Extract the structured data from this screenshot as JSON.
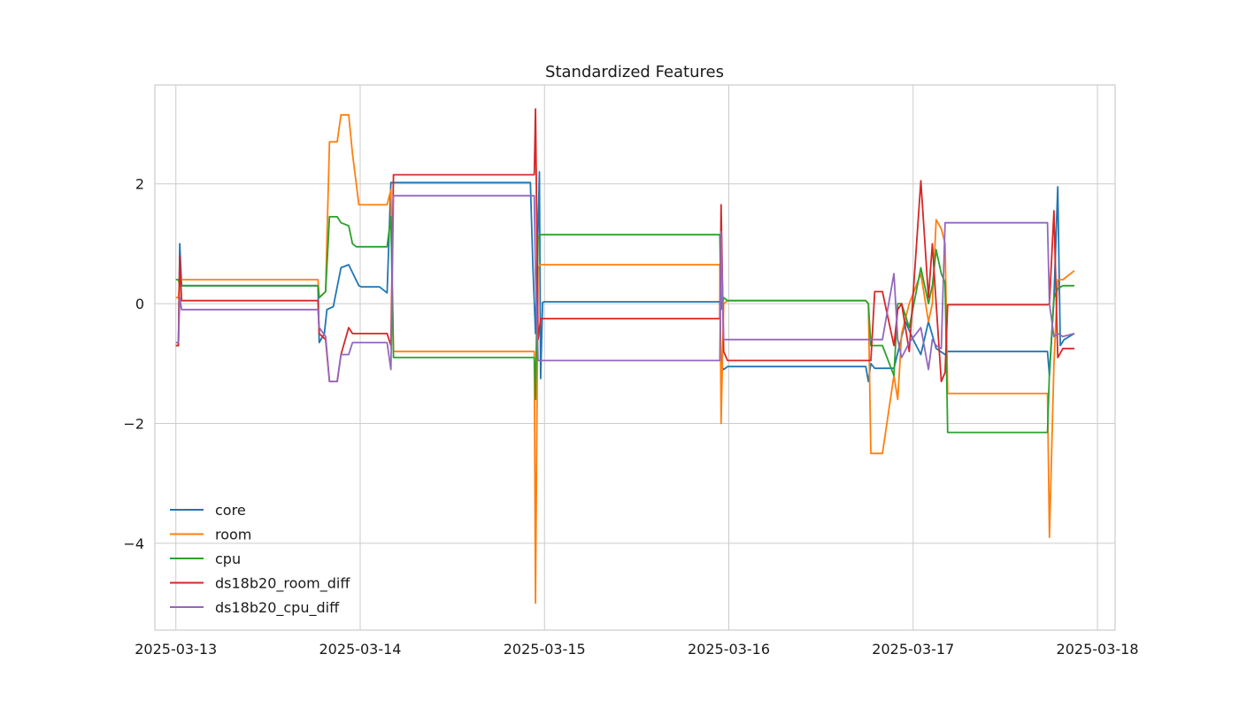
{
  "chart_data": {
    "type": "line",
    "title": "Standardized Features",
    "xlabel": "",
    "ylabel": "",
    "x_type": "date",
    "xlim": [
      "2025-03-12T21:16",
      "2025-03-18T02:18"
    ],
    "ylim": [
      -5.45,
      3.65
    ],
    "x_ticks": [
      "2025-03-13",
      "2025-03-14",
      "2025-03-15",
      "2025-03-16",
      "2025-03-17",
      "2025-03-18"
    ],
    "y_ticks": [
      2,
      0,
      -2,
      -4
    ],
    "y_tick_labels": [
      "2",
      "0",
      "−2",
      "−4"
    ],
    "grid": true,
    "legend_position": "lower-left",
    "series": [
      {
        "name": "core",
        "color": "#1f77b4",
        "x": [
          "2025-03-13T00:00",
          "2025-03-13T00:20",
          "2025-03-13T00:30",
          "2025-03-13T00:45",
          "2025-03-13T01:15",
          "2025-03-13T18:30",
          "2025-03-13T18:40",
          "2025-03-13T19:20",
          "2025-03-13T19:40",
          "2025-03-13T20:30",
          "2025-03-13T21:30",
          "2025-03-13T22:30",
          "2025-03-13T23:50",
          "2025-03-14T00:10",
          "2025-03-14T00:45",
          "2025-03-14T02:30",
          "2025-03-14T03:30",
          "2025-03-14T04:00",
          "2025-03-14T04:20",
          "2025-03-14T22:10",
          "2025-03-14T22:30",
          "2025-03-14T22:50",
          "2025-03-14T23:20",
          "2025-03-14T23:30",
          "2025-03-14T23:45",
          "2025-03-15T00:00",
          "2025-03-15T22:50",
          "2025-03-15T23:00",
          "2025-03-15T23:20",
          "2025-03-15T23:50",
          "2025-03-16T00:40",
          "2025-03-16T01:30",
          "2025-03-16T17:50",
          "2025-03-16T18:10",
          "2025-03-16T18:30",
          "2025-03-16T19:00",
          "2025-03-16T21:30",
          "2025-03-16T23:00",
          "2025-03-17T00:00",
          "2025-03-17T01:00",
          "2025-03-17T02:00",
          "2025-03-17T03:00",
          "2025-03-17T04:10",
          "2025-03-17T04:30",
          "2025-03-17T17:30",
          "2025-03-17T17:45",
          "2025-03-17T18:20",
          "2025-03-17T18:50",
          "2025-03-17T19:10",
          "2025-03-17T19:40",
          "2025-03-17T21:00"
        ],
        "y": [
          -0.7,
          -0.7,
          1.0,
          0.3,
          0.3,
          0.3,
          -0.65,
          -0.5,
          -0.1,
          -0.05,
          0.6,
          0.65,
          0.3,
          0.28,
          0.28,
          0.28,
          0.18,
          2.02,
          2.02,
          2.02,
          0.6,
          -0.5,
          2.2,
          -1.25,
          0.02,
          0.03,
          0.03,
          -1.05,
          -1.1,
          -1.05,
          -1.05,
          -1.05,
          -1.05,
          -1.3,
          -1.0,
          -1.08,
          -1.08,
          -0.3,
          -0.6,
          -0.85,
          -0.3,
          -0.75,
          -0.85,
          -0.8,
          -0.8,
          -1.2,
          0.1,
          1.95,
          -0.7,
          -0.6,
          -0.5
        ]
      },
      {
        "name": "room",
        "color": "#ff7f0e",
        "x": [
          "2025-03-13T00:00",
          "2025-03-13T00:20",
          "2025-03-13T00:30",
          "2025-03-13T00:45",
          "2025-03-13T18:30",
          "2025-03-13T18:40",
          "2025-03-13T19:30",
          "2025-03-13T20:00",
          "2025-03-13T21:00",
          "2025-03-13T21:30",
          "2025-03-13T22:30",
          "2025-03-13T23:00",
          "2025-03-13T23:30",
          "2025-03-13T23:50",
          "2025-03-14T01:30",
          "2025-03-14T03:30",
          "2025-03-14T04:00",
          "2025-03-14T04:20",
          "2025-03-14T22:20",
          "2025-03-14T22:40",
          "2025-03-14T22:50",
          "2025-03-14T23:10",
          "2025-03-14T23:30",
          "2025-03-15T00:00",
          "2025-03-15T22:50",
          "2025-03-15T23:00",
          "2025-03-15T23:20",
          "2025-03-15T23:50",
          "2025-03-16T01:00",
          "2025-03-16T17:50",
          "2025-03-16T18:10",
          "2025-03-16T18:30",
          "2025-03-16T19:00",
          "2025-03-16T20:00",
          "2025-03-16T21:30",
          "2025-03-16T22:00",
          "2025-03-16T22:30",
          "2025-03-16T23:30",
          "2025-03-17T01:00",
          "2025-03-17T02:00",
          "2025-03-17T02:30",
          "2025-03-17T03:00",
          "2025-03-17T03:40",
          "2025-03-17T04:10",
          "2025-03-17T04:30",
          "2025-03-17T17:30",
          "2025-03-17T17:45",
          "2025-03-17T18:20",
          "2025-03-17T18:50",
          "2025-03-17T19:30",
          "2025-03-17T21:00"
        ],
        "y": [
          0.1,
          0.1,
          0.4,
          0.4,
          0.4,
          0.1,
          0.2,
          2.7,
          2.7,
          3.15,
          3.15,
          2.5,
          2.0,
          1.65,
          1.65,
          1.65,
          1.9,
          -0.8,
          -0.8,
          -0.8,
          -5.0,
          0.6,
          0.65,
          0.65,
          0.65,
          -2.0,
          0.0,
          0.05,
          0.05,
          0.05,
          0.0,
          -2.5,
          -2.5,
          -2.5,
          -1.2,
          -1.6,
          -0.5,
          0.0,
          0.5,
          -0.3,
          0.0,
          1.4,
          1.25,
          1.0,
          -1.5,
          -1.5,
          -3.9,
          -1.0,
          0.4,
          0.4,
          0.55
        ]
      },
      {
        "name": "cpu",
        "color": "#2ca02c",
        "x": [
          "2025-03-13T00:00",
          "2025-03-13T00:20",
          "2025-03-13T00:30",
          "2025-03-13T00:45",
          "2025-03-13T18:30",
          "2025-03-13T18:40",
          "2025-03-13T19:30",
          "2025-03-13T20:00",
          "2025-03-13T21:00",
          "2025-03-13T21:30",
          "2025-03-13T22:30",
          "2025-03-13T23:00",
          "2025-03-13T23:30",
          "2025-03-13T23:50",
          "2025-03-14T01:30",
          "2025-03-14T03:30",
          "2025-03-14T04:00",
          "2025-03-14T04:20",
          "2025-03-14T22:20",
          "2025-03-14T22:40",
          "2025-03-14T22:50",
          "2025-03-14T23:10",
          "2025-03-14T23:30",
          "2025-03-15T00:00",
          "2025-03-15T22:50",
          "2025-03-15T23:00",
          "2025-03-15T23:20",
          "2025-03-15T23:50",
          "2025-03-16T01:00",
          "2025-03-16T17:50",
          "2025-03-16T18:10",
          "2025-03-16T18:30",
          "2025-03-16T19:00",
          "2025-03-16T20:00",
          "2025-03-16T21:30",
          "2025-03-16T22:00",
          "2025-03-16T22:30",
          "2025-03-16T23:30",
          "2025-03-17T01:00",
          "2025-03-17T02:00",
          "2025-03-17T02:30",
          "2025-03-17T03:00",
          "2025-03-17T03:40",
          "2025-03-17T04:10",
          "2025-03-17T04:30",
          "2025-03-17T17:30",
          "2025-03-17T17:45",
          "2025-03-17T18:20",
          "2025-03-17T18:50",
          "2025-03-17T19:30",
          "2025-03-17T21:00"
        ],
        "y": [
          0.4,
          0.4,
          0.3,
          0.3,
          0.3,
          0.1,
          0.2,
          1.45,
          1.45,
          1.35,
          1.3,
          1.0,
          0.95,
          0.95,
          0.95,
          0.95,
          1.45,
          -0.9,
          -0.9,
          -0.9,
          -1.6,
          1.1,
          1.15,
          1.15,
          1.15,
          -0.1,
          0.1,
          0.05,
          0.05,
          0.05,
          0.0,
          -0.7,
          -0.7,
          -0.7,
          -1.2,
          0.0,
          0.0,
          -0.4,
          0.6,
          0.0,
          0.3,
          0.9,
          0.5,
          0.35,
          -2.15,
          -2.15,
          -1.15,
          0.1,
          0.25,
          0.3,
          0.3
        ]
      },
      {
        "name": "ds18b20_room_diff",
        "color": "#d62728",
        "x": [
          "2025-03-13T00:00",
          "2025-03-13T00:20",
          "2025-03-13T00:30",
          "2025-03-13T00:45",
          "2025-03-13T18:30",
          "2025-03-13T18:40",
          "2025-03-13T19:30",
          "2025-03-13T20:00",
          "2025-03-13T21:00",
          "2025-03-13T21:30",
          "2025-03-13T22:30",
          "2025-03-13T23:00",
          "2025-03-13T23:30",
          "2025-03-13T23:50",
          "2025-03-14T01:30",
          "2025-03-14T03:30",
          "2025-03-14T04:00",
          "2025-03-14T04:20",
          "2025-03-14T22:20",
          "2025-03-14T22:40",
          "2025-03-14T22:50",
          "2025-03-14T23:10",
          "2025-03-14T23:30",
          "2025-03-15T00:00",
          "2025-03-15T22:50",
          "2025-03-15T23:00",
          "2025-03-15T23:20",
          "2025-03-15T23:50",
          "2025-03-16T01:00",
          "2025-03-16T17:50",
          "2025-03-16T18:10",
          "2025-03-16T18:30",
          "2025-03-16T19:00",
          "2025-03-16T20:00",
          "2025-03-16T21:30",
          "2025-03-16T22:00",
          "2025-03-16T22:30",
          "2025-03-16T23:30",
          "2025-03-17T01:00",
          "2025-03-17T02:00",
          "2025-03-17T02:30",
          "2025-03-17T03:00",
          "2025-03-17T03:40",
          "2025-03-17T04:10",
          "2025-03-17T04:30",
          "2025-03-17T17:30",
          "2025-03-17T17:45",
          "2025-03-17T18:20",
          "2025-03-17T18:50",
          "2025-03-17T19:30",
          "2025-03-17T21:00"
        ],
        "y": [
          -0.7,
          -0.7,
          0.8,
          0.05,
          0.05,
          -0.5,
          -0.6,
          -1.3,
          -1.3,
          -0.85,
          -0.4,
          -0.5,
          -0.5,
          -0.5,
          -0.5,
          -0.5,
          -0.7,
          2.15,
          2.15,
          2.15,
          3.25,
          -0.6,
          -0.25,
          -0.25,
          -0.25,
          1.65,
          -0.8,
          -0.95,
          -0.95,
          -0.95,
          -0.95,
          -0.95,
          0.2,
          0.2,
          -0.7,
          -0.1,
          0.0,
          -0.8,
          2.05,
          0.1,
          1.0,
          0.0,
          -1.3,
          -1.15,
          -0.02,
          -0.02,
          0.0,
          1.55,
          -0.9,
          -0.75,
          -0.75
        ]
      },
      {
        "name": "ds18b20_cpu_diff",
        "color": "#9467bd",
        "x": [
          "2025-03-13T00:00",
          "2025-03-13T00:20",
          "2025-03-13T00:30",
          "2025-03-13T00:45",
          "2025-03-13T18:30",
          "2025-03-13T18:40",
          "2025-03-13T19:30",
          "2025-03-13T20:00",
          "2025-03-13T21:00",
          "2025-03-13T21:30",
          "2025-03-13T22:30",
          "2025-03-13T23:00",
          "2025-03-13T23:30",
          "2025-03-13T23:50",
          "2025-03-14T01:30",
          "2025-03-14T03:30",
          "2025-03-14T04:00",
          "2025-03-14T04:20",
          "2025-03-14T22:20",
          "2025-03-14T22:40",
          "2025-03-14T22:50",
          "2025-03-14T23:10",
          "2025-03-14T23:30",
          "2025-03-15T00:00",
          "2025-03-15T22:50",
          "2025-03-15T23:00",
          "2025-03-15T23:20",
          "2025-03-15T23:50",
          "2025-03-16T01:00",
          "2025-03-16T17:50",
          "2025-03-16T18:10",
          "2025-03-16T18:30",
          "2025-03-16T19:00",
          "2025-03-16T20:00",
          "2025-03-16T21:30",
          "2025-03-16T22:00",
          "2025-03-16T22:30",
          "2025-03-16T23:30",
          "2025-03-17T01:00",
          "2025-03-17T02:00",
          "2025-03-17T02:30",
          "2025-03-17T03:00",
          "2025-03-17T03:40",
          "2025-03-17T04:10",
          "2025-03-17T04:30",
          "2025-03-17T17:30",
          "2025-03-17T17:45",
          "2025-03-17T18:20",
          "2025-03-17T18:50",
          "2025-03-17T19:30",
          "2025-03-17T21:00"
        ],
        "y": [
          -0.65,
          -0.65,
          0.1,
          -0.1,
          -0.1,
          -0.4,
          -0.55,
          -1.3,
          -1.3,
          -0.85,
          -0.85,
          -0.65,
          -0.65,
          -0.65,
          -0.65,
          -0.65,
          -1.1,
          1.8,
          1.8,
          1.8,
          0.5,
          -0.95,
          -0.95,
          -0.95,
          -0.95,
          1.2,
          -0.6,
          -0.6,
          -0.6,
          -0.6,
          -0.6,
          -0.6,
          -0.6,
          -0.6,
          0.5,
          -0.6,
          -0.9,
          -0.65,
          -0.4,
          -1.1,
          -0.6,
          -0.7,
          -0.75,
          1.35,
          1.35,
          1.35,
          0.0,
          -0.55,
          -0.5,
          -0.55,
          -0.5
        ]
      }
    ]
  }
}
